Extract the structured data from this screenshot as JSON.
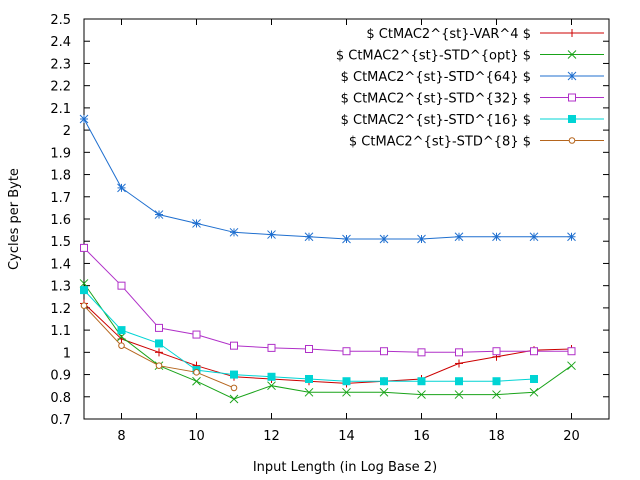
{
  "chart_data": {
    "type": "line",
    "xlabel": "Input Length (in Log Base 2)",
    "ylabel": "Cycles per Byte",
    "xlim": [
      7,
      21
    ],
    "ylim": [
      0.7,
      2.5
    ],
    "xticks": [
      8,
      10,
      12,
      14,
      16,
      18,
      20
    ],
    "yticks": [
      0.7,
      0.8,
      0.9,
      1,
      1.1,
      1.2,
      1.3,
      1.4,
      1.5,
      1.6,
      1.7,
      1.8,
      1.9,
      2,
      2.1,
      2.2,
      2.3,
      2.4,
      2.5
    ],
    "grid": false,
    "legend_position": "top-right",
    "series": [
      {
        "name": "$ CtMAC2^{st}-VAR^4 $",
        "color": "#cc0000",
        "marker": "plus",
        "x": [
          7,
          8,
          9,
          10,
          11,
          12,
          13,
          14,
          15,
          16,
          17,
          18,
          19,
          20
        ],
        "y": [
          1.22,
          1.06,
          1.0,
          0.94,
          0.89,
          0.88,
          0.87,
          0.86,
          0.87,
          0.88,
          0.95,
          0.98,
          1.01,
          1.015
        ]
      },
      {
        "name": "$ CtMAC2^{st}-STD^{opt} $",
        "color": "#19a319",
        "marker": "cross",
        "x": [
          7,
          8,
          9,
          10,
          11,
          12,
          13,
          14,
          15,
          16,
          17,
          18,
          19,
          20
        ],
        "y": [
          1.31,
          1.07,
          0.94,
          0.87,
          0.79,
          0.85,
          0.82,
          0.82,
          0.82,
          0.81,
          0.81,
          0.81,
          0.82,
          0.94
        ]
      },
      {
        "name": "$ CtMAC2^{st}-STD^{64} $",
        "color": "#1f6fcf",
        "marker": "star",
        "x": [
          7,
          8,
          9,
          10,
          11,
          12,
          13,
          14,
          15,
          16,
          17,
          18,
          19,
          20
        ],
        "y": [
          2.05,
          1.74,
          1.62,
          1.58,
          1.54,
          1.53,
          1.52,
          1.51,
          1.51,
          1.51,
          1.52,
          1.52,
          1.52,
          1.52
        ]
      },
      {
        "name": "$ CtMAC2^{st}-STD^{32} $",
        "color": "#b030c8",
        "marker": "open-square",
        "x": [
          7,
          8,
          9,
          10,
          11,
          12,
          13,
          14,
          15,
          16,
          17,
          18,
          19,
          20
        ],
        "y": [
          1.47,
          1.3,
          1.11,
          1.08,
          1.03,
          1.02,
          1.015,
          1.005,
          1.005,
          1.0,
          1.0,
          1.005,
          1.005,
          1.005
        ]
      },
      {
        "name": "$ CtMAC2^{st}-STD^{16} $",
        "color": "#00d4d4",
        "marker": "filled-square",
        "x": [
          7,
          8,
          9,
          10,
          11,
          12,
          13,
          14,
          15,
          16,
          17,
          18,
          19
        ],
        "y": [
          1.28,
          1.1,
          1.04,
          0.92,
          0.9,
          0.89,
          0.88,
          0.87,
          0.87,
          0.87,
          0.87,
          0.87,
          0.88
        ]
      },
      {
        "name": "$ CtMAC2^{st}-STD^{8} $",
        "color": "#b5651d",
        "marker": "open-circle",
        "x": [
          7,
          8,
          9,
          10,
          11
        ],
        "y": [
          1.21,
          1.03,
          0.94,
          0.91,
          0.84
        ]
      }
    ]
  }
}
